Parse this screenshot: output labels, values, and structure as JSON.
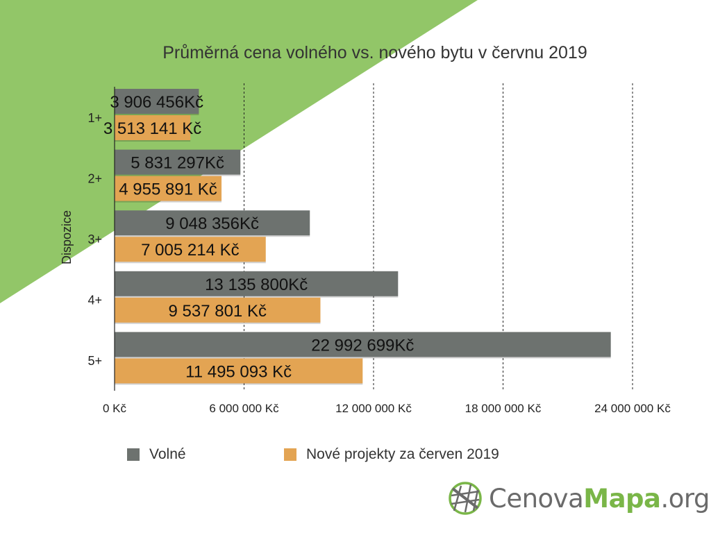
{
  "colors": {
    "background_accent": "#92c668",
    "volne": "#6d726f",
    "nove": "#e3a453",
    "logo_green": "#7ab648",
    "logo_gray": "#6a6a6a"
  },
  "logo": {
    "part1": "Cenova",
    "part2": "Mapa",
    "part3": ".org",
    "icon": "globe-grid-icon"
  },
  "chart_data": {
    "type": "bar",
    "orientation": "horizontal",
    "title": "Průměrná cena volného vs. nového bytu v červnu 2019",
    "ylabel": "Dispozice",
    "xlabel": "",
    "categories": [
      "1+",
      "2+",
      "3+",
      "4+",
      "5+"
    ],
    "xlim": [
      0,
      24000000
    ],
    "xticks": [
      0,
      6000000,
      12000000,
      18000000,
      24000000
    ],
    "xtick_labels": [
      "0 Kč",
      "6 000 000 Kč",
      "12 000 000 Kč",
      "18 000 000 Kč",
      "24 000 000 Kč"
    ],
    "grid": "vertical dashed",
    "legend_position": "bottom",
    "series": [
      {
        "name": "Volné",
        "color": "#6d726f",
        "values": [
          3906456,
          5831297,
          9048356,
          13135800,
          22992699
        ],
        "labels": [
          "3 906 456Kč",
          "5 831 297Kč",
          "9 048 356Kč",
          "13 135 800Kč",
          "22 992 699Kč"
        ]
      },
      {
        "name": "Nové projekty za červen 2019",
        "color": "#e3a453",
        "values": [
          3513141,
          4955891,
          7005214,
          9537801,
          11495093
        ],
        "labels": [
          "3 513 141 Kč",
          "4 955 891 Kč",
          "7 005 214 Kč",
          "9 537 801 Kč",
          "11 495 093 Kč"
        ]
      }
    ]
  }
}
